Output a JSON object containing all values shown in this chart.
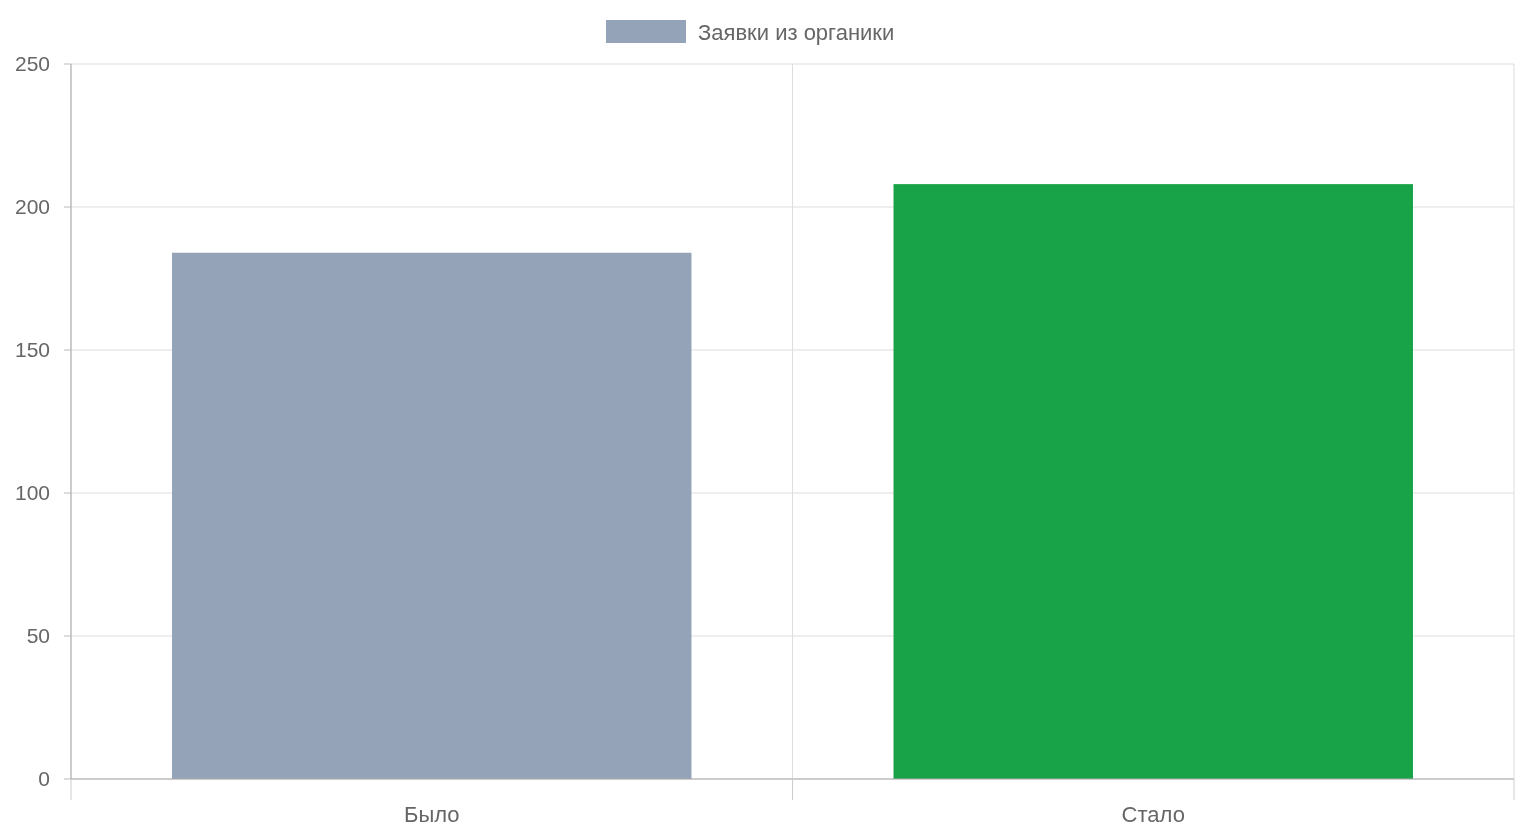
{
  "chart_data": {
    "type": "bar",
    "categories": [
      "Было",
      "Стало"
    ],
    "series": [
      {
        "name": "Заявки из органики",
        "color": "#94a3b8",
        "colors": [
          "#94a3b8",
          "#19a349"
        ],
        "values": [
          184,
          208
        ]
      }
    ],
    "ylim": [
      0,
      250
    ],
    "yticks": [
      0,
      50,
      100,
      150,
      200,
      250
    ],
    "grid": true,
    "legend": "top"
  }
}
